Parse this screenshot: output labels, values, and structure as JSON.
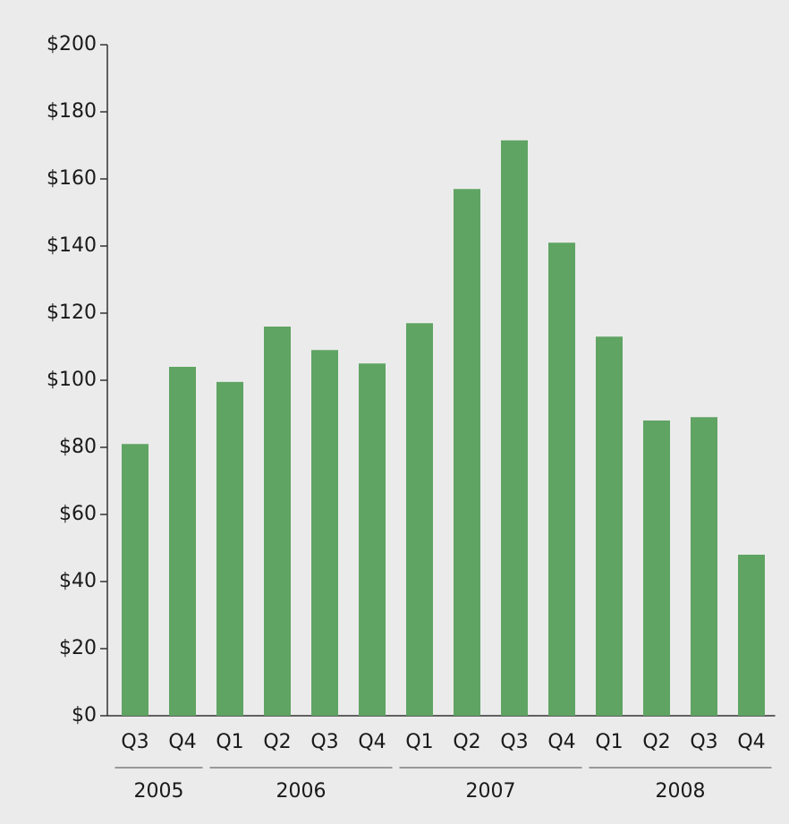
{
  "chart_data": {
    "type": "bar",
    "groups": [
      {
        "label": "2005",
        "categories": [
          "Q3",
          "Q4"
        ]
      },
      {
        "label": "2006",
        "categories": [
          "Q1",
          "Q2",
          "Q3",
          "Q4"
        ]
      },
      {
        "label": "2007",
        "categories": [
          "Q1",
          "Q2",
          "Q3",
          "Q4"
        ]
      },
      {
        "label": "2008",
        "categories": [
          "Q1",
          "Q2",
          "Q3",
          "Q4"
        ]
      }
    ],
    "values": [
      81,
      104,
      99.5,
      116,
      109,
      105,
      117,
      157,
      171.5,
      141,
      113,
      88,
      89,
      48
    ],
    "color": "#5fa463",
    "ylim": [
      0,
      200
    ],
    "yticks": [
      {
        "value": 0,
        "label": "$0"
      },
      {
        "value": 20,
        "label": "$20"
      },
      {
        "value": 40,
        "label": "$40"
      },
      {
        "value": 60,
        "label": "$60"
      },
      {
        "value": 80,
        "label": "$80"
      },
      {
        "value": 100,
        "label": "$100"
      },
      {
        "value": 120,
        "label": "$120"
      },
      {
        "value": 140,
        "label": "$140"
      },
      {
        "value": 160,
        "label": "$160"
      },
      {
        "value": 180,
        "label": "$180"
      },
      {
        "value": 200,
        "label": "$200"
      }
    ]
  }
}
